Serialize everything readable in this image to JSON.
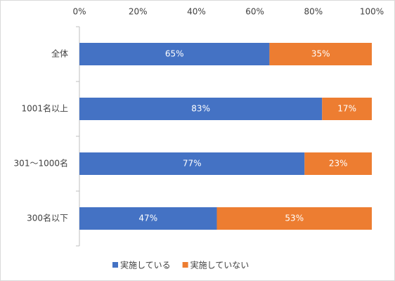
{
  "chart_data": {
    "type": "stacked-bar-horizontal",
    "categories": [
      "全体",
      "1001名以上",
      "301～1000名",
      "300名以下"
    ],
    "series": [
      {
        "name": "実施している",
        "color": "#4472c4",
        "values": [
          65,
          83,
          77,
          47
        ],
        "value_labels": [
          "65%",
          "83%",
          "77%",
          "47%"
        ]
      },
      {
        "name": "実施していない",
        "color": "#ed7d31",
        "values": [
          35,
          17,
          23,
          53
        ],
        "value_labels": [
          "35%",
          "17%",
          "23%",
          "53%"
        ]
      }
    ],
    "xlim": [
      0,
      100
    ],
    "xticks": [
      {
        "value": 0,
        "label": "0%"
      },
      {
        "value": 20,
        "label": "20%"
      },
      {
        "value": 40,
        "label": "40%"
      },
      {
        "value": 60,
        "label": "60%"
      },
      {
        "value": 80,
        "label": "80%"
      },
      {
        "value": 100,
        "label": "100%"
      }
    ],
    "grid": false,
    "legend": "bottom"
  }
}
